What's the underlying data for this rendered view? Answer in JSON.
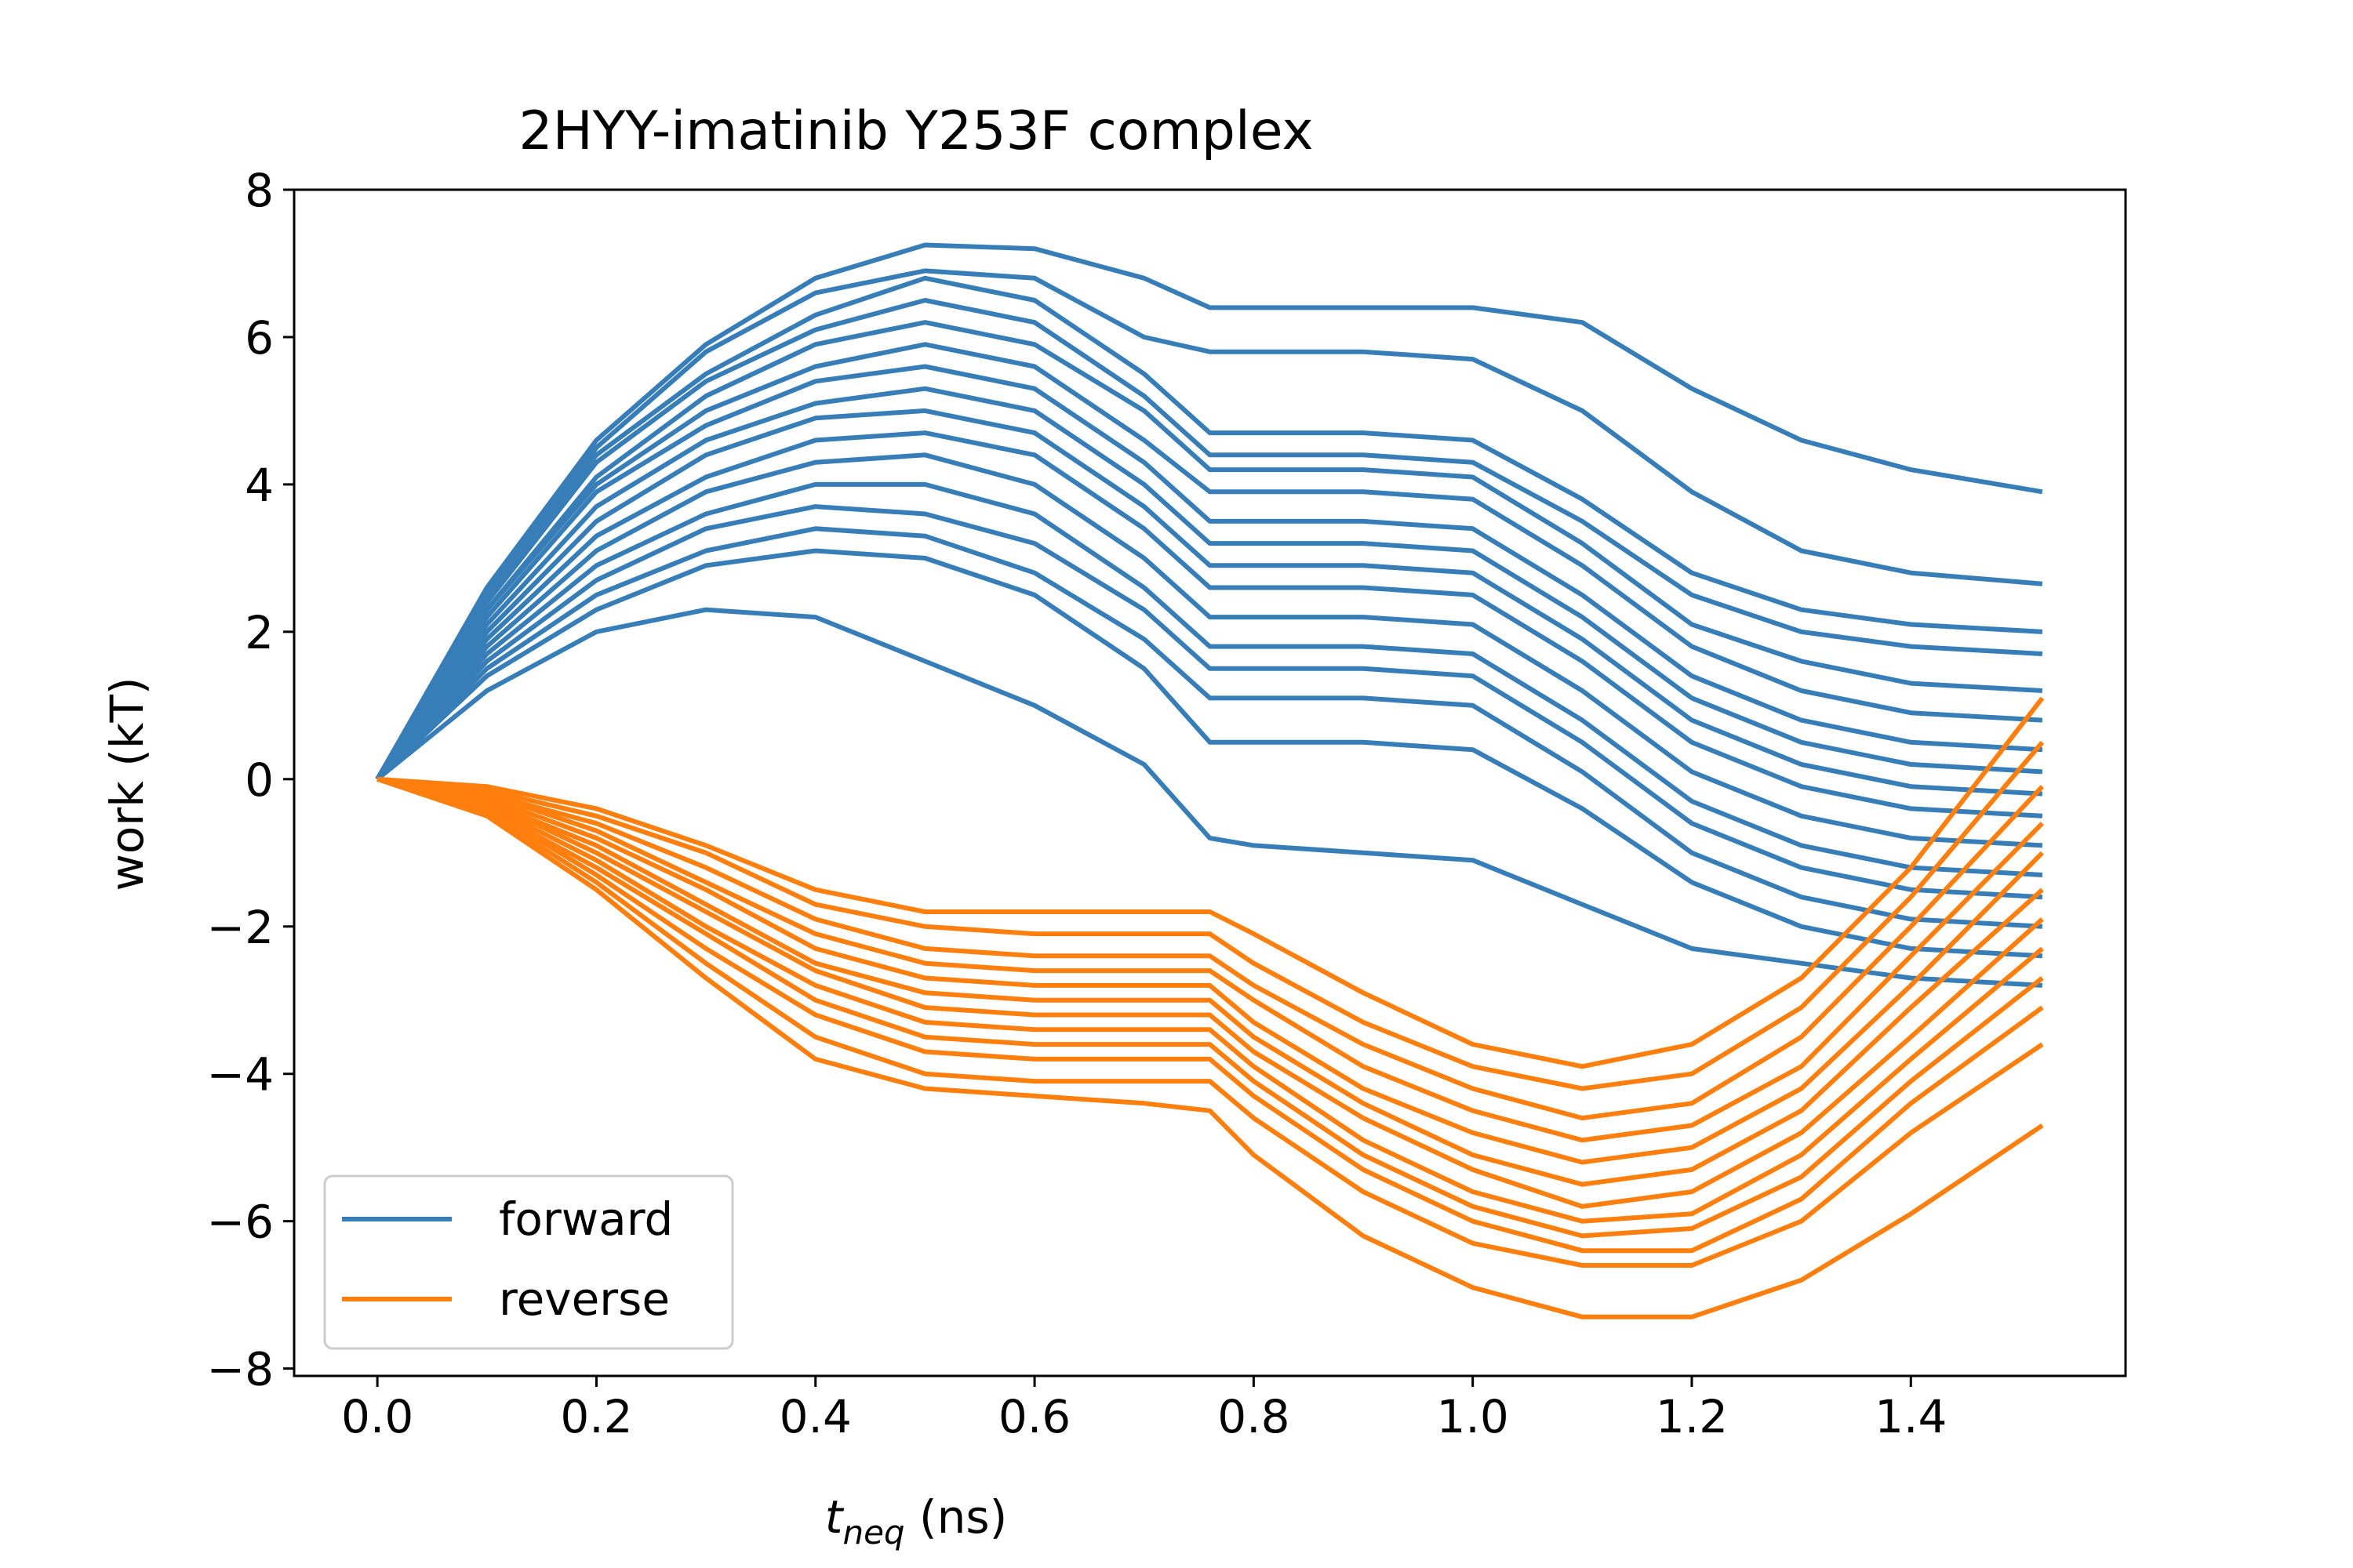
{
  "chart_data": {
    "type": "line",
    "title": "2HYY-imatinib Y253F complex",
    "xlabel": {
      "main": "t",
      "subscript": "neq",
      "unit": " (ns)"
    },
    "ylabel": "work (kT)",
    "xlim": [
      -0.076,
      1.596
    ],
    "ylim": [
      -8.1,
      8.0
    ],
    "x_ticks": [
      0.0,
      0.2,
      0.4,
      0.6,
      0.8,
      1.0,
      1.2,
      1.4
    ],
    "x_tick_labels": [
      "0.0",
      "0.2",
      "0.4",
      "0.6",
      "0.8",
      "1.0",
      "1.2",
      "1.4"
    ],
    "y_ticks": [
      -8,
      -6,
      -4,
      -2,
      0,
      2,
      4,
      6,
      8
    ],
    "y_tick_labels": [
      "−8",
      "−6",
      "−4",
      "−2",
      "0",
      "2",
      "4",
      "6",
      "8"
    ],
    "legend": {
      "position": "bottom-left",
      "entries": [
        {
          "label": "forward",
          "color": "#377eb8"
        },
        {
          "label": "reverse",
          "color": "#ff7f0e"
        }
      ]
    },
    "series": [
      {
        "name": "forward",
        "color": "#377eb8",
        "x": [
          0.0,
          0.1,
          0.2,
          0.3,
          0.4,
          0.5,
          0.6,
          0.7,
          0.76,
          0.8,
          0.9,
          1.0,
          1.1,
          1.2,
          1.3,
          1.4,
          1.52
        ],
        "runs": [
          [
            0,
            2.6,
            4.6,
            5.9,
            6.8,
            7.25,
            7.2,
            6.8,
            6.4,
            6.4,
            6.4,
            6.4,
            6.2,
            5.3,
            4.6,
            4.2,
            3.9
          ],
          [
            0,
            2.5,
            4.5,
            5.8,
            6.6,
            6.9,
            6.8,
            6.0,
            5.8,
            5.8,
            5.8,
            5.7,
            5.0,
            3.9,
            3.1,
            2.8,
            2.65
          ],
          [
            0,
            2.5,
            4.4,
            5.5,
            6.3,
            6.8,
            6.5,
            5.5,
            4.7,
            4.7,
            4.7,
            4.6,
            3.8,
            2.8,
            2.3,
            2.1,
            2.0
          ],
          [
            0,
            2.4,
            4.3,
            5.4,
            6.1,
            6.5,
            6.2,
            5.2,
            4.4,
            4.4,
            4.4,
            4.3,
            3.5,
            2.5,
            2.0,
            1.8,
            1.7
          ],
          [
            0,
            2.3,
            4.1,
            5.2,
            5.9,
            6.2,
            5.9,
            5.0,
            4.2,
            4.2,
            4.2,
            4.1,
            3.2,
            2.1,
            1.6,
            1.3,
            1.2
          ],
          [
            0,
            2.3,
            4.0,
            5.0,
            5.6,
            5.9,
            5.6,
            4.6,
            3.9,
            3.9,
            3.9,
            3.8,
            2.9,
            1.8,
            1.2,
            0.9,
            0.8
          ],
          [
            0,
            2.2,
            3.9,
            4.8,
            5.4,
            5.6,
            5.3,
            4.3,
            3.5,
            3.5,
            3.5,
            3.4,
            2.5,
            1.4,
            0.8,
            0.5,
            0.4
          ],
          [
            0,
            2.1,
            3.7,
            4.6,
            5.1,
            5.3,
            5.0,
            4.0,
            3.2,
            3.2,
            3.2,
            3.1,
            2.2,
            1.1,
            0.5,
            0.2,
            0.1
          ],
          [
            0,
            2.0,
            3.5,
            4.4,
            4.9,
            5.0,
            4.7,
            3.7,
            2.9,
            2.9,
            2.9,
            2.8,
            1.9,
            0.8,
            0.2,
            -0.1,
            -0.2
          ],
          [
            0,
            1.9,
            3.3,
            4.1,
            4.6,
            4.7,
            4.4,
            3.4,
            2.6,
            2.6,
            2.6,
            2.5,
            1.6,
            0.5,
            -0.1,
            -0.4,
            -0.5
          ],
          [
            0,
            1.8,
            3.1,
            3.9,
            4.3,
            4.4,
            4.0,
            3.0,
            2.2,
            2.2,
            2.2,
            2.1,
            1.2,
            0.1,
            -0.5,
            -0.8,
            -0.9
          ],
          [
            0,
            1.7,
            2.9,
            3.6,
            4.0,
            4.0,
            3.6,
            2.6,
            1.8,
            1.8,
            1.8,
            1.7,
            0.8,
            -0.3,
            -0.9,
            -1.2,
            -1.3
          ],
          [
            0,
            1.6,
            2.7,
            3.4,
            3.7,
            3.6,
            3.2,
            2.3,
            1.5,
            1.5,
            1.5,
            1.4,
            0.5,
            -0.6,
            -1.2,
            -1.5,
            -1.6
          ],
          [
            0,
            1.5,
            2.5,
            3.1,
            3.4,
            3.3,
            2.8,
            1.9,
            1.1,
            1.1,
            1.1,
            1.0,
            0.1,
            -1.0,
            -1.6,
            -1.9,
            -2.0
          ],
          [
            0,
            1.4,
            2.3,
            2.9,
            3.1,
            3.0,
            2.5,
            1.5,
            0.5,
            0.5,
            0.5,
            0.4,
            -0.4,
            -1.4,
            -2.0,
            -2.3,
            -2.4
          ],
          [
            0,
            1.2,
            2.0,
            2.3,
            2.2,
            1.6,
            1.0,
            0.2,
            -0.8,
            -0.9,
            -1.0,
            -1.1,
            -1.7,
            -2.3,
            -2.5,
            -2.7,
            -2.8
          ]
        ]
      },
      {
        "name": "reverse",
        "color": "#ff7f0e",
        "x": [
          0.0,
          0.1,
          0.2,
          0.3,
          0.4,
          0.5,
          0.6,
          0.7,
          0.76,
          0.8,
          0.9,
          1.0,
          1.1,
          1.2,
          1.3,
          1.4,
          1.52
        ],
        "runs": [
          [
            0,
            -0.1,
            -0.4,
            -0.9,
            -1.5,
            -1.8,
            -1.8,
            -1.8,
            -1.8,
            -2.1,
            -2.9,
            -3.6,
            -3.9,
            -3.6,
            -2.7,
            -1.2,
            1.1
          ],
          [
            0,
            -0.15,
            -0.5,
            -1.0,
            -1.7,
            -2.0,
            -2.1,
            -2.1,
            -2.1,
            -2.5,
            -3.3,
            -3.9,
            -4.2,
            -4.0,
            -3.1,
            -1.6,
            0.5
          ],
          [
            0,
            -0.2,
            -0.6,
            -1.2,
            -1.9,
            -2.3,
            -2.4,
            -2.4,
            -2.4,
            -2.8,
            -3.6,
            -4.2,
            -4.6,
            -4.4,
            -3.5,
            -2.0,
            -0.1
          ],
          [
            0,
            -0.2,
            -0.7,
            -1.4,
            -2.1,
            -2.5,
            -2.6,
            -2.6,
            -2.6,
            -3.0,
            -3.9,
            -4.5,
            -4.9,
            -4.7,
            -3.9,
            -2.4,
            -0.6
          ],
          [
            0,
            -0.25,
            -0.8,
            -1.5,
            -2.3,
            -2.7,
            -2.8,
            -2.8,
            -2.8,
            -3.3,
            -4.2,
            -4.8,
            -5.2,
            -5.0,
            -4.2,
            -2.8,
            -1.0
          ],
          [
            0,
            -0.3,
            -0.9,
            -1.7,
            -2.5,
            -2.9,
            -3.0,
            -3.0,
            -3.0,
            -3.5,
            -4.4,
            -5.1,
            -5.5,
            -5.3,
            -4.5,
            -3.1,
            -1.5
          ],
          [
            0,
            -0.3,
            -1.0,
            -1.8,
            -2.6,
            -3.1,
            -3.2,
            -3.2,
            -3.2,
            -3.7,
            -4.6,
            -5.3,
            -5.8,
            -5.6,
            -4.8,
            -3.5,
            -1.9
          ],
          [
            0,
            -0.35,
            -1.1,
            -2.0,
            -2.8,
            -3.3,
            -3.4,
            -3.4,
            -3.4,
            -3.9,
            -4.9,
            -5.6,
            -6.0,
            -5.9,
            -5.1,
            -3.8,
            -2.3
          ],
          [
            0,
            -0.4,
            -1.2,
            -2.1,
            -3.0,
            -3.5,
            -3.6,
            -3.6,
            -3.6,
            -4.1,
            -5.1,
            -5.8,
            -6.2,
            -6.1,
            -5.4,
            -4.1,
            -2.7
          ],
          [
            0,
            -0.4,
            -1.3,
            -2.3,
            -3.2,
            -3.7,
            -3.8,
            -3.8,
            -3.8,
            -4.3,
            -5.3,
            -6.0,
            -6.4,
            -6.4,
            -5.7,
            -4.4,
            -3.1
          ],
          [
            0,
            -0.45,
            -1.4,
            -2.5,
            -3.5,
            -4.0,
            -4.1,
            -4.1,
            -4.1,
            -4.6,
            -5.6,
            -6.3,
            -6.6,
            -6.6,
            -6.0,
            -4.8,
            -3.6
          ],
          [
            0,
            -0.5,
            -1.5,
            -2.7,
            -3.8,
            -4.2,
            -4.3,
            -4.4,
            -4.5,
            -5.1,
            -6.2,
            -6.9,
            -7.3,
            -7.3,
            -6.8,
            -5.9,
            -4.7
          ]
        ]
      }
    ]
  }
}
